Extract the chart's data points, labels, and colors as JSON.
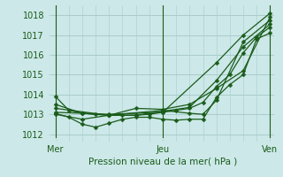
{
  "bg_color": "#cce8e8",
  "grid_color": "#aacccc",
  "line_color": "#1a5c1a",
  "marker_color": "#1a5c1a",
  "title": "Pression niveau de la mer( hPa )",
  "xlabel_day_labels": [
    "Mer",
    "Jeu",
    "Ven"
  ],
  "xlabel_day_positions": [
    0,
    24,
    48
  ],
  "ylim": [
    1011.8,
    1018.5
  ],
  "yticks": [
    1012,
    1013,
    1014,
    1015,
    1016,
    1017,
    1018
  ],
  "xlim": [
    -1,
    49
  ],
  "lines": [
    [
      0,
      1013.9,
      3,
      1013.2,
      6,
      1013.05,
      9,
      1013.0,
      12,
      1012.95,
      15,
      1012.95,
      18,
      1012.95,
      21,
      1013.0,
      24,
      1013.1,
      27,
      1013.2,
      30,
      1013.3,
      33,
      1013.6,
      36,
      1014.4,
      39,
      1015.0,
      42,
      1016.1,
      45,
      1016.9,
      48,
      1017.4
    ],
    [
      0,
      1013.5,
      6,
      1013.05,
      12,
      1012.95,
      18,
      1012.95,
      24,
      1013.15,
      30,
      1013.35,
      36,
      1014.7,
      42,
      1016.4,
      48,
      1017.55
    ],
    [
      0,
      1013.3,
      12,
      1012.95,
      24,
      1013.2,
      30,
      1013.05,
      33,
      1013.0,
      36,
      1013.7,
      42,
      1016.65,
      48,
      1017.75
    ],
    [
      0,
      1013.1,
      12,
      1013.0,
      24,
      1013.1,
      36,
      1015.6,
      42,
      1017.0,
      48,
      1018.1
    ],
    [
      0,
      1013.05,
      3,
      1012.85,
      6,
      1012.5,
      9,
      1012.35,
      12,
      1012.55,
      15,
      1012.75,
      18,
      1012.85,
      21,
      1012.85,
      24,
      1012.75,
      27,
      1012.7,
      30,
      1012.75,
      33,
      1012.75,
      36,
      1013.85,
      39,
      1014.5,
      42,
      1015.0,
      45,
      1016.8,
      48,
      1017.1
    ],
    [
      0,
      1013.0,
      6,
      1012.75,
      12,
      1012.95,
      18,
      1013.3,
      24,
      1013.25,
      30,
      1013.5,
      36,
      1014.3,
      42,
      1015.2,
      48,
      1017.9
    ]
  ]
}
